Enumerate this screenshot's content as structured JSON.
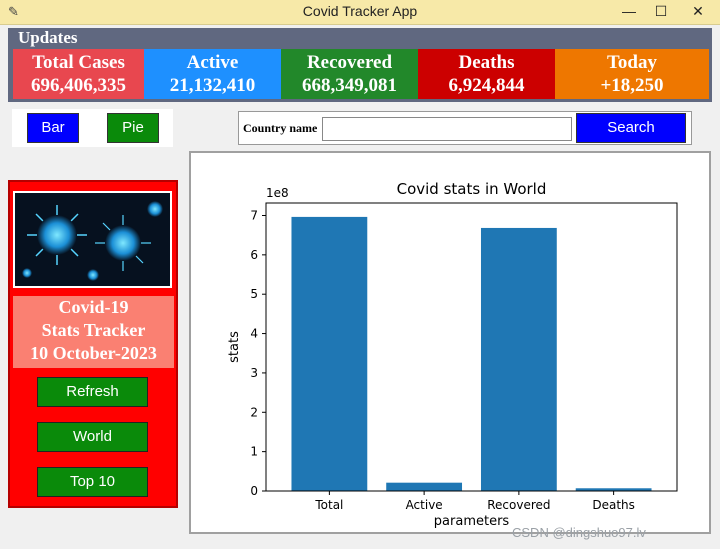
{
  "window": {
    "title": "Covid Tracker App",
    "min_icon": "minimize-icon",
    "max_icon": "maximize-icon",
    "close_icon": "close-icon"
  },
  "updates": {
    "label": "Updates",
    "stats": [
      {
        "label": "Total Cases",
        "value": "696,406,335",
        "color": "#e8474f"
      },
      {
        "label": "Active",
        "value": "21,132,410",
        "color": "#1e90ff"
      },
      {
        "label": "Recovered",
        "value": "668,349,081",
        "color": "#22882a"
      },
      {
        "label": "Deaths",
        "value": "6,924,844",
        "color": "#cc0000"
      },
      {
        "label": "Today",
        "value": "+18,250",
        "color": "#ee7700"
      }
    ]
  },
  "chart_type": {
    "bar_label": "Bar",
    "pie_label": "Pie"
  },
  "search": {
    "country_label": "Country name",
    "input_value": "",
    "button_label": "Search"
  },
  "sidebar": {
    "tracker_lines": [
      "Covid-19",
      "Stats Tracker",
      "10 October-2023"
    ],
    "refresh_label": "Refresh",
    "world_label": "World",
    "top10_label": "Top 10"
  },
  "chart_data": {
    "type": "bar",
    "title": "Covid stats in World",
    "xlabel": "parameters",
    "ylabel": "stats",
    "offset_label": "1e8",
    "categories": [
      "Total",
      "Active",
      "Recovered",
      "Deaths"
    ],
    "values": [
      696406335,
      21132410,
      668349081,
      6924844
    ],
    "ylim": [
      0,
      731726586
    ],
    "y_ticks": [
      0,
      1,
      2,
      3,
      4,
      5,
      6,
      7
    ],
    "bar_color": "#1f77b4",
    "grid": false
  },
  "watermark": "CSDN @dingshuo97.lv"
}
